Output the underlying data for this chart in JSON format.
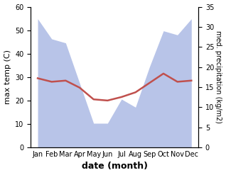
{
  "months": [
    "Jan",
    "Feb",
    "Mar",
    "Apr",
    "May",
    "Jun",
    "Jul",
    "Aug",
    "Sep",
    "Oct",
    "Nov",
    "Dec"
  ],
  "month_x": [
    1,
    2,
    3,
    4,
    5,
    6,
    7,
    8,
    9,
    10,
    11,
    12
  ],
  "precipitation": [
    32,
    27,
    26,
    16,
    6,
    6,
    12,
    10,
    20,
    29,
    28,
    32
  ],
  "temperature": [
    29.5,
    28.0,
    28.5,
    25.5,
    20.5,
    20.0,
    21.5,
    23.5,
    27.5,
    31.5,
    28.0,
    28.5
  ],
  "temp_color": "#c0504d",
  "precip_fill_color": "#b8c4e8",
  "left_ylim": [
    0,
    60
  ],
  "right_ylim": [
    0,
    35
  ],
  "left_yticks": [
    0,
    10,
    20,
    30,
    40,
    50,
    60
  ],
  "right_yticks": [
    0,
    5,
    10,
    15,
    20,
    25,
    30,
    35
  ],
  "xlabel": "date (month)",
  "ylabel_left": "max temp (C)",
  "ylabel_right": "med. precipitation (kg/m2)"
}
